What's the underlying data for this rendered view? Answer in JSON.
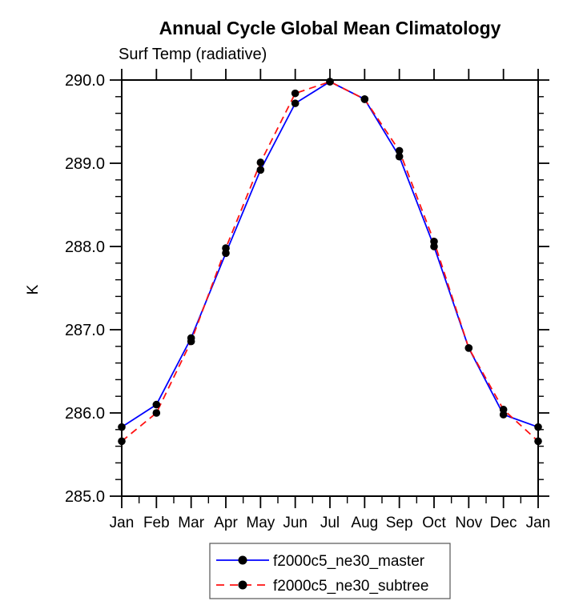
{
  "header": {
    "title": "Annual Cycle Global Mean Climatology",
    "subtitle": "Surf Temp (radiative)"
  },
  "chart_data": {
    "type": "line",
    "title": "Annual Cycle Global Mean Climatology",
    "subtitle": "Surf Temp (radiative)",
    "xlabel": "",
    "ylabel": "K",
    "categories": [
      "Jan",
      "Feb",
      "Mar",
      "Apr",
      "May",
      "Jun",
      "Jul",
      "Aug",
      "Sep",
      "Oct",
      "Nov",
      "Dec",
      "Jan"
    ],
    "ylim": [
      285.0,
      290.0
    ],
    "ytick_labels": [
      "285.0",
      "286.0",
      "287.0",
      "288.0",
      "289.0",
      "290.0"
    ],
    "ytick_major_interval": 1.0,
    "ytick_minor_interval": 0.2,
    "grid": false,
    "legend_position": "bottom-center",
    "marker": "filled-circle",
    "marker_color": "#000000",
    "axis_color": "#000000",
    "series": [
      {
        "name": "f2000c5_ne30_master",
        "color": "#0000ff",
        "style": "solid",
        "values": [
          285.83,
          286.1,
          286.9,
          287.92,
          288.92,
          289.72,
          289.98,
          289.77,
          289.08,
          288.0,
          286.78,
          285.98,
          285.83
        ]
      },
      {
        "name": "f2000c5_ne30_subtree",
        "color": "#ff1111",
        "style": "dashed",
        "values": [
          285.66,
          286.0,
          286.86,
          287.98,
          289.01,
          289.84,
          289.98,
          289.77,
          289.15,
          288.06,
          286.78,
          286.04,
          285.66
        ]
      }
    ]
  }
}
